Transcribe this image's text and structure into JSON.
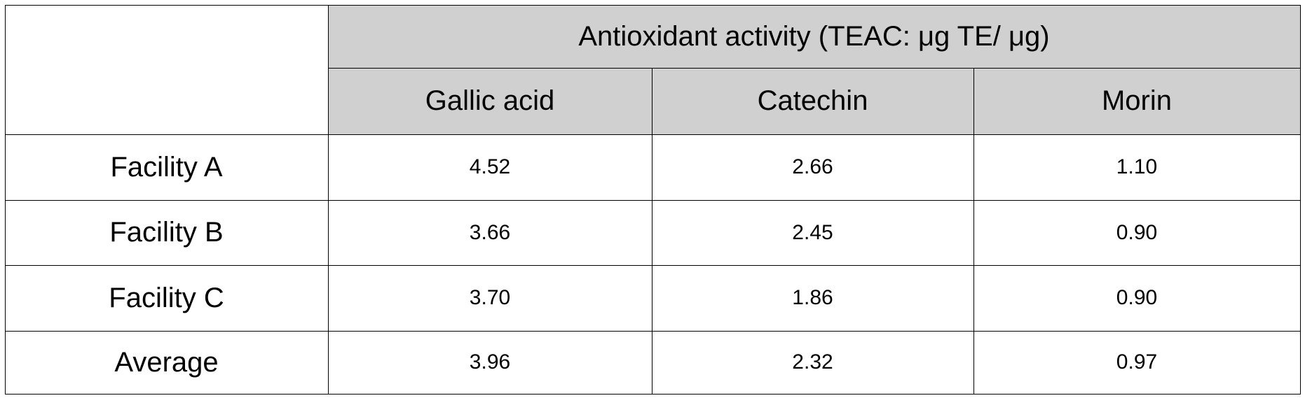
{
  "header": {
    "title": "Antioxidant activity (TEAC: μg TE/ μg)",
    "columns": [
      "Gallic acid",
      "Catechin",
      "Morin"
    ]
  },
  "rows": [
    {
      "label": "Facility A",
      "values": [
        "4.52",
        "2.66",
        "1.10"
      ]
    },
    {
      "label": "Facility B",
      "values": [
        "3.66",
        "2.45",
        "0.90"
      ]
    },
    {
      "label": "Facility C",
      "values": [
        "3.70",
        "1.86",
        "0.90"
      ]
    },
    {
      "label": "Average",
      "values": [
        "3.96",
        "2.32",
        "0.97"
      ]
    }
  ]
}
